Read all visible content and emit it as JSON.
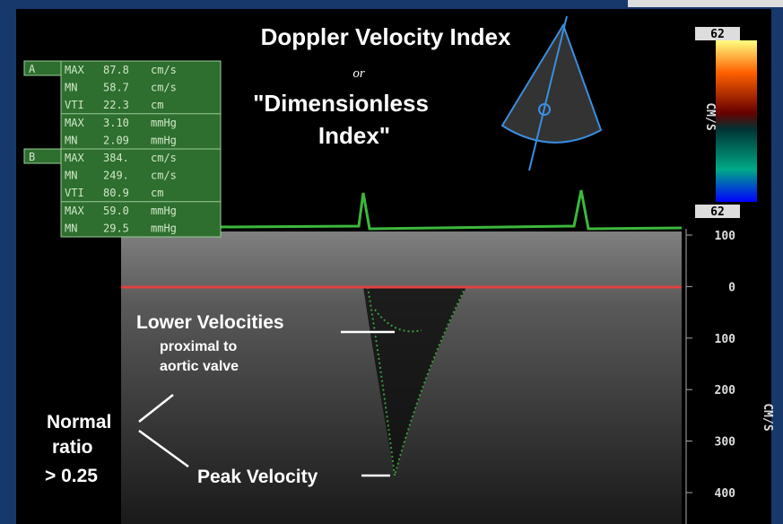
{
  "title": {
    "line1": "Doppler Velocity Index",
    "line2": "or",
    "line3": "\"Dimensionless",
    "line4": "Index\""
  },
  "measurements": {
    "groups": [
      {
        "label": "A",
        "rows": [
          [
            "MAX",
            "87.8",
            "cm/s"
          ],
          [
            "MN",
            "58.7",
            "cm/s"
          ],
          [
            "VTI",
            "22.3",
            "cm"
          ],
          [
            "MAX",
            "3.10",
            "mmHg"
          ],
          [
            "MN",
            "2.09",
            "mmHg"
          ]
        ]
      },
      {
        "label": "B",
        "rows": [
          [
            "MAX",
            "384.",
            "cm/s"
          ],
          [
            "MN",
            "249.",
            "cm/s"
          ],
          [
            "VTI",
            "80.9",
            "cm"
          ],
          [
            "MAX",
            "59.0",
            "mmHg"
          ],
          [
            "MN",
            "29.5",
            "mmHg"
          ]
        ]
      }
    ]
  },
  "color_bar": {
    "top": "62",
    "bottom": "62",
    "unit": "CM/S"
  },
  "scale": {
    "ticks": [
      "100",
      "0",
      "100",
      "200",
      "300",
      "400"
    ],
    "unit": "CM/S"
  },
  "annotations": {
    "lower1": "Lower Velocities",
    "lower2": "proximal to",
    "lower3": "aortic valve",
    "normal1": "Normal",
    "normal2": "ratio",
    "normal3": "> 0.25",
    "peak": "Peak Velocity"
  }
}
